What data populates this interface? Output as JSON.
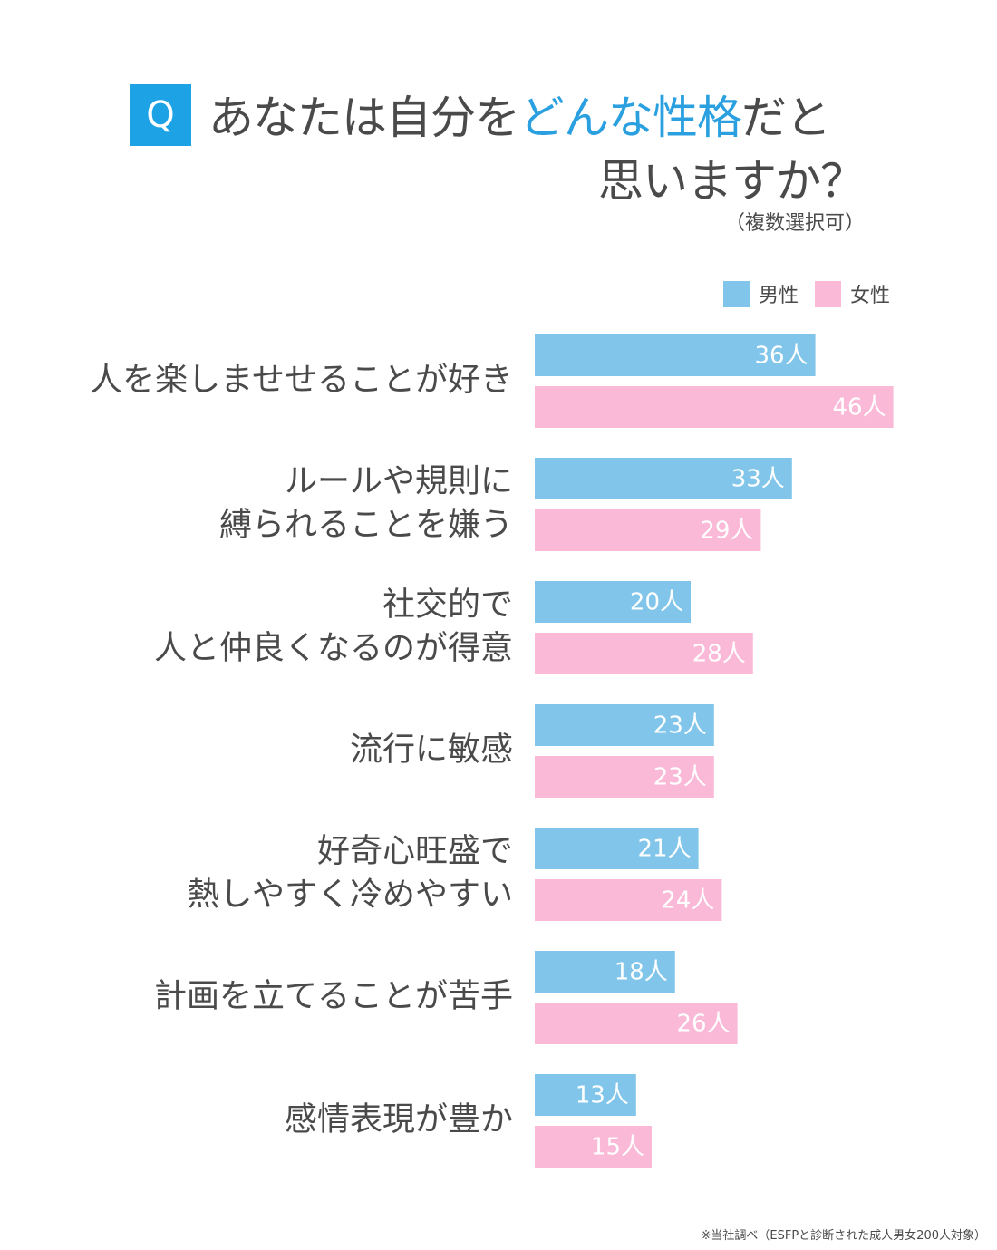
{
  "title": {
    "badge": "Q",
    "line1_pre": "あなたは自分を",
    "line1_accent": "どんな性格",
    "line1_post": "だと",
    "line2": "思いますか？",
    "note": "（複数選択可）"
  },
  "legend": {
    "male": "男性",
    "female": "女性"
  },
  "footnote": "※当社調べ（ESFPと診断された成人男女200人対象）",
  "colors": {
    "male": "#81c6ea",
    "female": "#fbb9d8",
    "accent": "#2aa0e0",
    "badge": "#1ea2e6"
  },
  "chart_data": {
    "type": "bar",
    "orientation": "horizontal",
    "unit": "人",
    "categories": [
      [
        "人を楽しませせることが好き"
      ],
      [
        "ルールや規則に",
        "縛られることを嫌う"
      ],
      [
        "社交的で",
        "人と仲良くなるのが得意"
      ],
      [
        "流行に敏感"
      ],
      [
        "好奇心旺盛で",
        "熱しやすく冷めやすい"
      ],
      [
        "計画を立てることが苦手"
      ],
      [
        "感情表現が豊か"
      ]
    ],
    "series": [
      {
        "name": "男性",
        "values": [
          36,
          33,
          20,
          23,
          21,
          18,
          13
        ],
        "labels": [
          "36人",
          "33人",
          "20人",
          "23人",
          "21人",
          "18人",
          "13人"
        ]
      },
      {
        "name": "女性",
        "values": [
          46,
          29,
          28,
          23,
          24,
          26,
          15
        ],
        "labels": [
          "46人",
          "29人",
          "28人",
          "23人",
          "24人",
          "26人",
          "15人"
        ]
      }
    ],
    "legend_position": "top-right",
    "grid": false
  }
}
